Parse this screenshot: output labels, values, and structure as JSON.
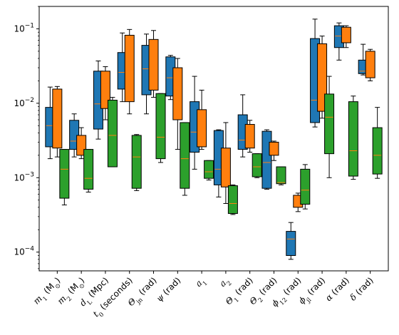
{
  "chart_data": {
    "type": "box",
    "y_scale": "log",
    "ylim": [
      5.6e-05,
      0.2
    ],
    "y_ticks": [
      {
        "value": 0.1,
        "base": "10",
        "exp": "−1"
      },
      {
        "value": 0.01,
        "base": "10",
        "exp": "−2"
      },
      {
        "value": 0.001,
        "base": "10",
        "exp": "−3"
      },
      {
        "value": 0.0001,
        "base": "10",
        "exp": "−4"
      }
    ],
    "categories": [
      {
        "sym": "m",
        "sub": "1",
        "unit": " (M",
        "unitSub": "⊙",
        "close": ")"
      },
      {
        "sym": "m",
        "sub": "2",
        "unit": " (M",
        "unitSub": "⊙",
        "close": ")"
      },
      {
        "sym": "d",
        "sub": "L",
        "unit": " (Mpc)",
        "unitSub": "",
        "close": ""
      },
      {
        "sym": "t",
        "sub": "0",
        "unit": " (seconds)",
        "unitSub": "",
        "close": ""
      },
      {
        "sym": "Θ",
        "sub": "jn",
        "unit": " (rad)",
        "unitSub": "",
        "close": ""
      },
      {
        "sym": "ψ",
        "sub": "",
        "unit": " (rad)",
        "unitSub": "",
        "close": ""
      },
      {
        "sym": "a",
        "sub": "1",
        "unit": "",
        "unitSub": "",
        "close": ""
      },
      {
        "sym": "a",
        "sub": "2",
        "unit": "",
        "unitSub": "",
        "close": ""
      },
      {
        "sym": "Θ",
        "sub": "1",
        "unit": " (rad)",
        "unitSub": "",
        "close": ""
      },
      {
        "sym": "Θ",
        "sub": "2",
        "unit": " (rad)",
        "unitSub": "",
        "close": ""
      },
      {
        "sym": "ϕ",
        "sub": "12",
        "unit": " (rad)",
        "unitSub": "",
        "close": ""
      },
      {
        "sym": "ϕ",
        "sub": "jl",
        "unit": " (rad)",
        "unitSub": "",
        "close": ""
      },
      {
        "sym": "α",
        "sub": "",
        "unit": " (rad)",
        "unitSub": "",
        "close": ""
      },
      {
        "sym": "δ",
        "sub": "",
        "unit": " (rad)",
        "unitSub": "",
        "close": ""
      }
    ],
    "series": [
      {
        "color": "#1f77b4",
        "boxes": [
          {
            "whislo": 0.0018,
            "q1": 0.0026,
            "med": 0.005,
            "q3": 0.0088,
            "whishi": 0.0165
          },
          {
            "whislo": 0.0019,
            "q1": 0.0024,
            "med": 0.0031,
            "q3": 0.0059,
            "whishi": 0.0072
          },
          {
            "whislo": 0.0033,
            "q1": 0.0045,
            "med": 0.0098,
            "q3": 0.027,
            "whishi": 0.037
          },
          {
            "whislo": 0.0105,
            "q1": 0.0155,
            "med": 0.026,
            "q3": 0.048,
            "whishi": 0.088
          },
          {
            "whislo": 0.0072,
            "q1": 0.013,
            "med": 0.029,
            "q3": 0.06,
            "whishi": 0.085
          },
          {
            "whislo": 0.0112,
            "q1": 0.0125,
            "med": 0.022,
            "q3": 0.042,
            "whishi": 0.044
          },
          {
            "whislo": 0.0013,
            "q1": 0.0022,
            "med": 0.0041,
            "q3": 0.0105,
            "whishi": 0.023
          },
          {
            "whislo": 0.00055,
            "q1": 0.0008,
            "med": 0.0013,
            "q3": 0.0043,
            "whishi": 0.0044
          },
          {
            "whislo": 0.0019,
            "q1": 0.0024,
            "med": 0.0032,
            "q3": 0.007,
            "whishi": 0.013
          },
          {
            "whislo": 0.0007,
            "q1": 0.00072,
            "med": 0.0016,
            "q3": 0.0042,
            "whishi": 0.0044
          },
          {
            "whislo": 8e-05,
            "q1": 9e-05,
            "med": 0.00015,
            "q3": 0.00019,
            "whishi": 0.00025
          },
          {
            "whislo": 0.0048,
            "q1": 0.0055,
            "med": 0.011,
            "q3": 0.074,
            "whishi": 0.135
          },
          {
            "whislo": 0.038,
            "q1": 0.056,
            "med": 0.08,
            "q3": 0.11,
            "whishi": 0.12
          },
          {
            "whislo": 0.024,
            "q1": 0.025,
            "med": 0.027,
            "q3": 0.038,
            "whishi": 0.062
          }
        ]
      },
      {
        "color": "#ff7f0e",
        "boxes": [
          {
            "whislo": 0.0019,
            "q1": 0.0025,
            "med": 0.0075,
            "q3": 0.0155,
            "whishi": 0.0168
          },
          {
            "whislo": 0.0018,
            "q1": 0.002,
            "med": 0.0028,
            "q3": 0.0037,
            "whishi": 0.0047
          },
          {
            "whislo": 0.006,
            "q1": 0.0085,
            "med": 0.018,
            "q3": 0.027,
            "whishi": 0.031
          },
          {
            "whislo": 0.0072,
            "q1": 0.0105,
            "med": 0.028,
            "q3": 0.082,
            "whishi": 0.098
          },
          {
            "whislo": 0.012,
            "q1": 0.015,
            "med": 0.037,
            "q3": 0.072,
            "whishi": 0.095
          },
          {
            "whislo": 0.0024,
            "q1": 0.006,
            "med": 0.017,
            "q3": 0.03,
            "whishi": 0.04
          },
          {
            "whislo": 0.0024,
            "q1": 0.0026,
            "med": 0.0043,
            "q3": 0.0082,
            "whishi": 0.015
          },
          {
            "whislo": 0.00045,
            "q1": 0.00075,
            "med": 0.0011,
            "q3": 0.0025,
            "whishi": 0.0055
          },
          {
            "whislo": 0.0022,
            "q1": 0.0025,
            "med": 0.0038,
            "q3": 0.0052,
            "whishi": 0.0059
          },
          {
            "whislo": 0.0017,
            "q1": 0.002,
            "med": 0.0022,
            "q3": 0.003,
            "whishi": 0.0031
          },
          {
            "whislo": 0.00035,
            "q1": 0.0004,
            "med": 0.00052,
            "q3": 0.00058,
            "whishi": 0.00062
          },
          {
            "whislo": 0.0063,
            "q1": 0.0078,
            "med": 0.026,
            "q3": 0.063,
            "whishi": 0.08
          },
          {
            "whislo": 0.056,
            "q1": 0.065,
            "med": 0.09,
            "q3": 0.105,
            "whishi": 0.11
          },
          {
            "whislo": 0.02,
            "q1": 0.022,
            "med": 0.041,
            "q3": 0.05,
            "whishi": 0.053
          }
        ]
      },
      {
        "color": "#2ca02c",
        "boxes": [
          {
            "whislo": 0.00043,
            "q1": 0.00053,
            "med": 0.0013,
            "q3": 0.0024,
            "whishi": 0.0024
          },
          {
            "whislo": 0.00064,
            "q1": 0.0007,
            "med": 0.00098,
            "q3": 0.0024,
            "whishi": 0.0024
          },
          {
            "whislo": 0.0014,
            "q1": 0.0014,
            "med": 0.0037,
            "q3": 0.011,
            "whishi": 0.012
          },
          {
            "whislo": 0.00067,
            "q1": 0.00072,
            "med": 0.0019,
            "q3": 0.0037,
            "whishi": 0.0038
          },
          {
            "whislo": 0.0016,
            "q1": 0.0018,
            "med": 0.0035,
            "q3": 0.0135,
            "whishi": 0.0135
          },
          {
            "whislo": 0.00058,
            "q1": 0.00072,
            "med": 0.0018,
            "q3": 0.0055,
            "whishi": 0.0055
          },
          {
            "whislo": 0.00093,
            "q1": 0.00098,
            "med": 0.0012,
            "q3": 0.0017,
            "whishi": 0.0017
          },
          {
            "whislo": 0.00032,
            "q1": 0.00033,
            "med": 0.00045,
            "q3": 0.00078,
            "whishi": 0.0008
          },
          {
            "whislo": 0.001,
            "q1": 0.00103,
            "med": 0.0014,
            "q3": 0.0021,
            "whishi": 0.0021
          },
          {
            "whislo": 0.0008,
            "q1": 0.00083,
            "med": 0.00086,
            "q3": 0.0014,
            "whishi": 0.0014
          },
          {
            "whislo": 0.00038,
            "q1": 0.00044,
            "med": 0.00068,
            "q3": 0.0013,
            "whishi": 0.0015
          },
          {
            "whislo": 0.001,
            "q1": 0.0021,
            "med": 0.0065,
            "q3": 0.0133,
            "whishi": 0.023
          },
          {
            "whislo": 0.00095,
            "q1": 0.00105,
            "med": 0.0023,
            "q3": 0.0105,
            "whishi": 0.0125
          },
          {
            "whislo": 0.00098,
            "q1": 0.00112,
            "med": 0.002,
            "q3": 0.0047,
            "whishi": 0.0088
          }
        ]
      }
    ]
  }
}
